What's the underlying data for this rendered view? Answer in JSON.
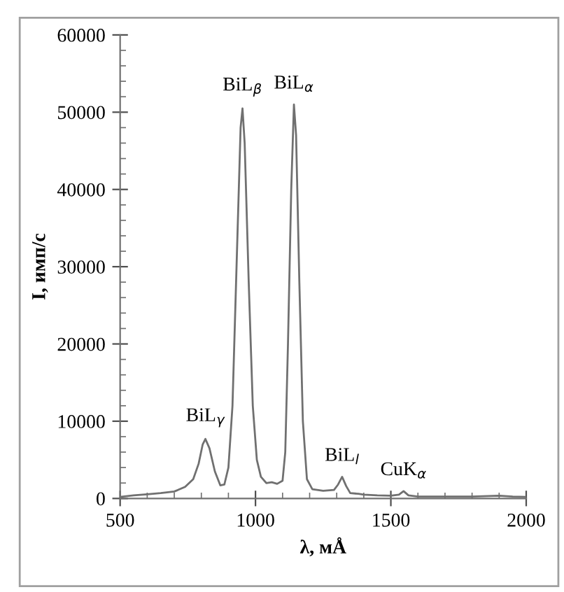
{
  "chart_data": {
    "type": "line",
    "xlabel": "λ, мÅ",
    "ylabel": "I, имп/с",
    "x": [
      500,
      550,
      600,
      650,
      700,
      740,
      770,
      790,
      805,
      815,
      830,
      850,
      870,
      885,
      900,
      915,
      930,
      945,
      952,
      960,
      975,
      990,
      1005,
      1020,
      1040,
      1060,
      1080,
      1100,
      1110,
      1120,
      1132,
      1142,
      1150,
      1162,
      1175,
      1190,
      1210,
      1250,
      1290,
      1305,
      1320,
      1335,
      1350,
      1380,
      1400,
      1450,
      1500,
      1530,
      1547,
      1565,
      1600,
      1700,
      1800,
      1900,
      1950,
      2000
    ],
    "series": [
      {
        "color": "#707070",
        "values": [
          200,
          400,
          550,
          700,
          900,
          1500,
          2500,
          4500,
          7000,
          7700,
          6500,
          3500,
          1700,
          1800,
          4000,
          12000,
          30000,
          48000,
          50500,
          46000,
          28000,
          12000,
          5000,
          2800,
          2000,
          2100,
          1900,
          2300,
          6000,
          20000,
          40000,
          51000,
          47000,
          28000,
          10000,
          2500,
          1200,
          1000,
          1100,
          1800,
          2800,
          1600,
          700,
          600,
          500,
          400,
          350,
          500,
          950,
          400,
          250,
          250,
          250,
          350,
          250,
          200
        ]
      }
    ],
    "xlim": [
      500,
      2000
    ],
    "xticks": [
      500,
      1000,
      1500,
      2000
    ],
    "ylim": [
      0,
      60000
    ],
    "yticks": [
      0,
      10000,
      20000,
      30000,
      40000,
      50000,
      60000
    ],
    "grid": false,
    "legend": false,
    "marker": "none",
    "line_style": "solid",
    "annotations": [
      {
        "text": "BiL$_{γ}$",
        "x": 815,
        "y": 7700
      },
      {
        "text": "BiL$_{β}$",
        "x": 952,
        "y": 50500
      },
      {
        "text": "BiL$_{α}$",
        "x": 1142,
        "y": 51000
      },
      {
        "text": "BiL$_{l}$",
        "x": 1320,
        "y": 2800
      },
      {
        "text": "CuK$_{α}$",
        "x": 1547,
        "y": 950
      }
    ]
  }
}
